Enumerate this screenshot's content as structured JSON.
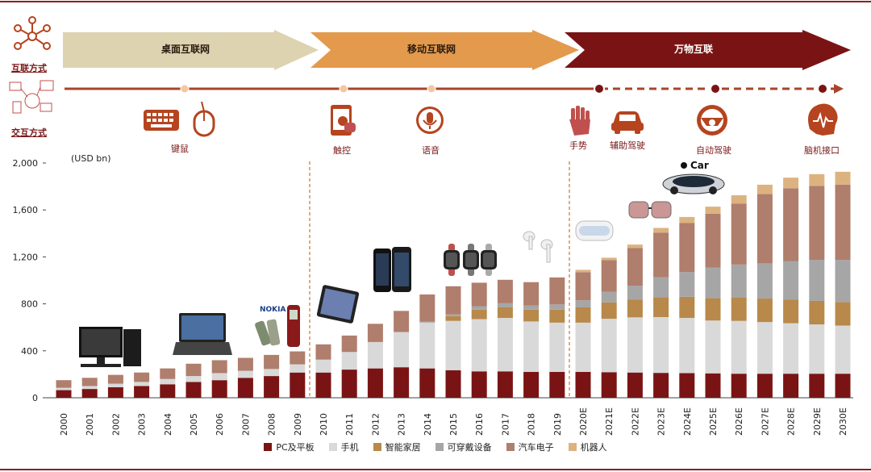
{
  "header": {
    "row1_label": "互联方式",
    "row2_label": "交互方式",
    "phases": [
      {
        "label": "桌面互联网",
        "color": "#ddd3b0"
      },
      {
        "label": "移动互联网",
        "color": "#e39a4c"
      },
      {
        "label": "万物互联",
        "color": "#7a1414"
      }
    ],
    "interactions": [
      "键鼠",
      "触控",
      "语音",
      "手势",
      "辅助驾驶",
      "自动驾驶",
      "脑机接口"
    ],
    "icons": [
      "network-icon",
      "keyboard-icon",
      "mouse-icon",
      "tablet-touch-icon",
      "microphone-icon",
      "hand-gesture-icon",
      "car-icon",
      "steering-wheel-icon",
      "brain-icon"
    ]
  },
  "colors": {
    "accent": "#8a1f1f",
    "timeline": "#a8442a",
    "divider": "#c87533"
  },
  "chart_data": {
    "type": "bar",
    "stacked": true,
    "unit_label": "(USD bn)",
    "ylim": [
      0,
      2000
    ],
    "yticks": [
      0,
      400,
      800,
      1200,
      1600,
      2000
    ],
    "ytick_labels": [
      "0",
      "400",
      "800",
      "1,200",
      "1,600",
      "2,000"
    ],
    "grid": false,
    "legend_position": "bottom",
    "categories": [
      "2000",
      "2001",
      "2002",
      "2003",
      "2004",
      "2005",
      "2006",
      "2007",
      "2008",
      "2009",
      "2010",
      "2011",
      "2012",
      "2013",
      "2014",
      "2015",
      "2016",
      "2017",
      "2018",
      "2019",
      "2020E",
      "2021E",
      "2022E",
      "2023E",
      "2024E",
      "2025E",
      "2026E",
      "2027E",
      "2028E",
      "2029E",
      "2030E"
    ],
    "series": [
      {
        "name": "PC及平板",
        "color": "#7a1414",
        "values": [
          65,
          75,
          90,
          100,
          115,
          135,
          150,
          170,
          185,
          215,
          215,
          240,
          250,
          260,
          250,
          235,
          225,
          225,
          220,
          220,
          220,
          218,
          215,
          212,
          210,
          208,
          205,
          205,
          205,
          205,
          205
        ]
      },
      {
        "name": "手机",
        "color": "#d9d9d9",
        "values": [
          20,
          25,
          30,
          35,
          45,
          50,
          60,
          60,
          60,
          70,
          110,
          150,
          225,
          300,
          390,
          420,
          445,
          455,
          430,
          420,
          420,
          455,
          470,
          475,
          470,
          450,
          450,
          440,
          430,
          420,
          410
        ]
      },
      {
        "name": "智能家居",
        "color": "#b8894a",
        "values": [
          0,
          0,
          0,
          0,
          0,
          0,
          0,
          0,
          0,
          0,
          0,
          0,
          0,
          0,
          0,
          40,
          80,
          90,
          100,
          110,
          130,
          140,
          150,
          170,
          180,
          190,
          200,
          200,
          200,
          200,
          200
        ]
      },
      {
        "name": "可穿戴设备",
        "color": "#a6a6a6",
        "values": [
          0,
          0,
          0,
          0,
          0,
          0,
          0,
          0,
          0,
          0,
          0,
          0,
          0,
          0,
          10,
          15,
          30,
          35,
          35,
          45,
          60,
          90,
          120,
          170,
          210,
          260,
          280,
          300,
          330,
          350,
          360
        ]
      },
      {
        "name": "汽车电子",
        "color": "#b07e6c",
        "values": [
          65,
          70,
          75,
          80,
          90,
          105,
          110,
          110,
          120,
          110,
          130,
          140,
          155,
          180,
          230,
          240,
          200,
          200,
          200,
          230,
          240,
          270,
          320,
          380,
          420,
          460,
          520,
          590,
          620,
          630,
          640
        ]
      },
      {
        "name": "机器人",
        "color": "#dcb380",
        "values": [
          0,
          0,
          0,
          0,
          0,
          0,
          0,
          0,
          0,
          0,
          0,
          0,
          0,
          0,
          0,
          0,
          0,
          0,
          0,
          0,
          20,
          20,
          30,
          40,
          50,
          60,
          70,
          80,
          90,
          100,
          110
        ]
      }
    ]
  },
  "product_images": [
    "desktop-pc",
    "laptop",
    "feature-phones",
    "tablet",
    "smartphone",
    "smartwatches",
    "earbuds",
    "vr-headset",
    "smart-glasses",
    "apple-car"
  ],
  "car_image_label": "Car"
}
